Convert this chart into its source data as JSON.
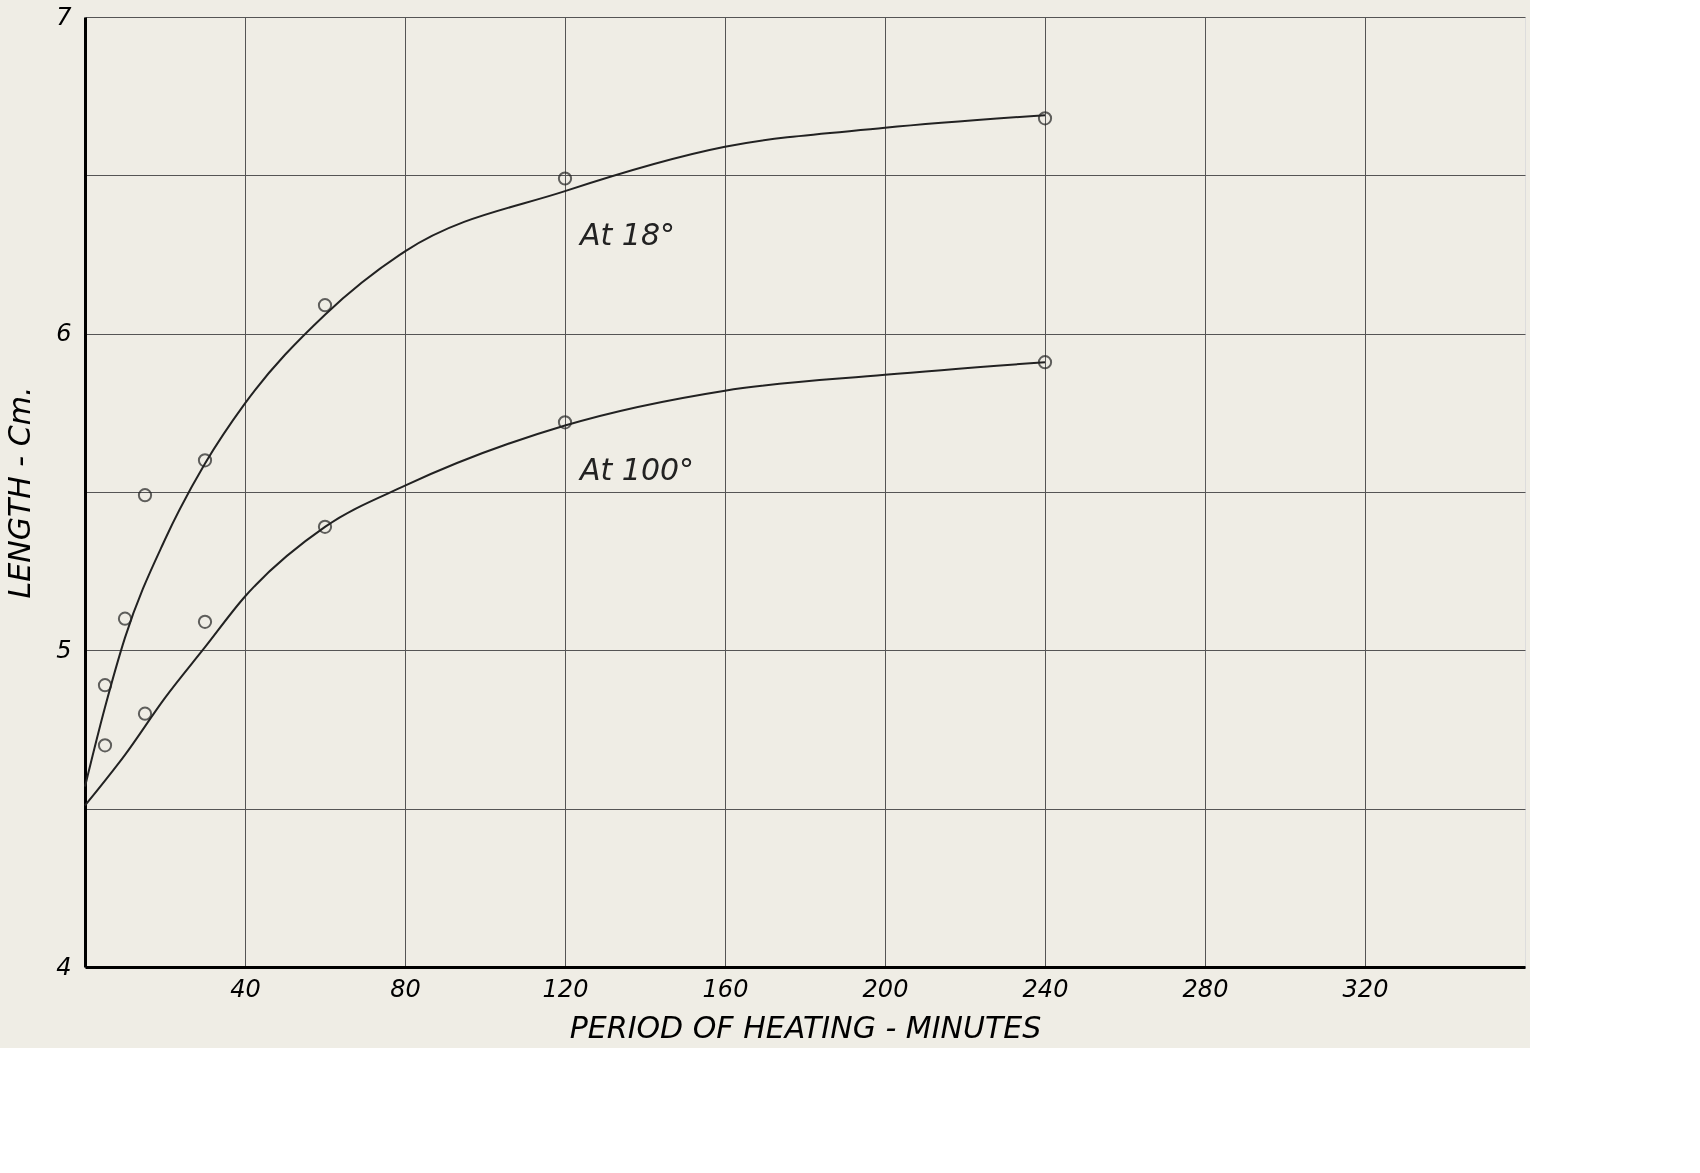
{
  "chart_data": {
    "type": "scatter",
    "xlabel": "PERIOD OF HEATING - MINUTES",
    "ylabel": "LENGTH - Cm.",
    "xlim": [
      0,
      360
    ],
    "ylim": [
      4,
      7
    ],
    "xticks": [
      40,
      80,
      120,
      160,
      200,
      240,
      280,
      320
    ],
    "yticks": [
      4,
      {
        "value": 4.5,
        "label": null
      },
      5,
      {
        "value": 5.5,
        "label": null
      },
      6,
      {
        "value": 6.5,
        "label": null
      },
      7
    ],
    "grid": true,
    "line_style": "solid",
    "series": [
      {
        "marker": "circle",
        "color": "#222222",
        "x": [
          5,
          10,
          15,
          30,
          60,
          120,
          240
        ],
        "values": [
          4.89,
          5.1,
          5.49,
          5.6,
          6.09,
          6.49,
          6.68
        ]
      },
      {
        "marker": "circle",
        "color": "#222222",
        "x": [
          5,
          15,
          30,
          60,
          120,
          240
        ],
        "values": [
          4.7,
          4.8,
          5.09,
          5.39,
          5.72,
          5.91
        ]
      },
      {
        "type": "line",
        "name": "At 18°",
        "marker": "none",
        "color": "#222222",
        "x": [
          0,
          5,
          10,
          20,
          30,
          40,
          60,
          80,
          120,
          160,
          200,
          240
        ],
        "values": [
          4.57,
          4.82,
          5.04,
          5.35,
          5.59,
          5.78,
          6.06,
          6.26,
          6.45,
          6.59,
          6.65,
          6.69
        ]
      },
      {
        "type": "line",
        "name": "At 100°",
        "marker": "none",
        "color": "#222222",
        "x": [
          0,
          10,
          20,
          30,
          40,
          60,
          80,
          120,
          160,
          200,
          240
        ],
        "values": [
          4.51,
          4.67,
          4.85,
          5.01,
          5.17,
          5.39,
          5.52,
          5.71,
          5.82,
          5.87,
          5.91
        ]
      }
    ]
  }
}
